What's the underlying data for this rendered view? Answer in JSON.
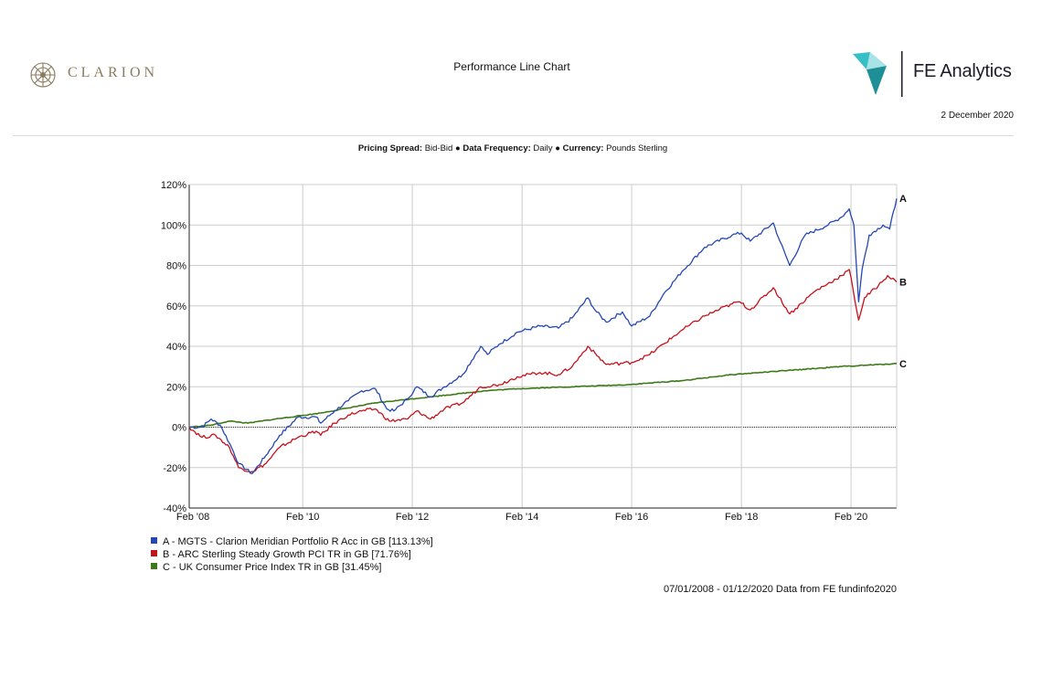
{
  "header": {
    "brand_left": "CLARION",
    "title": "Performance Line Chart",
    "brand_right": "FE Analytics",
    "date": "2 December 2020"
  },
  "subheader": {
    "pricing_spread_label": "Pricing Spread:",
    "pricing_spread_value": "Bid-Bid",
    "data_frequency_label": "Data Frequency:",
    "data_frequency_value": "Daily",
    "currency_label": "Currency:",
    "currency_value": "Pounds Sterling",
    "separator": "●"
  },
  "footer": {
    "source": "07/01/2008 - 01/12/2020 Data from FE fundinfo2020"
  },
  "colors": {
    "A": "#2447b5",
    "B": "#c8101a",
    "C": "#3d7a17",
    "grid": "#cccccc"
  },
  "chart_data": {
    "type": "line",
    "x_start": "2008-01-07",
    "x_end": "2020-12-01",
    "x_ticks": [
      "Feb '08",
      "Feb '10",
      "Feb '12",
      "Feb '14",
      "Feb '16",
      "Feb '18",
      "Feb '20"
    ],
    "y_ticks": [
      "120%",
      "100%",
      "80%",
      "60%",
      "40%",
      "20%",
      "0%",
      "-20%",
      "-40%"
    ],
    "ylim": [
      -40,
      120
    ],
    "grid": true,
    "series": [
      {
        "key": "A",
        "end_label": "A",
        "name": "A - MGTS - Clarion Meridian Portfolio R Acc in GB [113.13%]",
        "points": [
          [
            "2008-01-07",
            0
          ],
          [
            "2008-04-01",
            0
          ],
          [
            "2008-06-01",
            4
          ],
          [
            "2008-08-01",
            1
          ],
          [
            "2008-10-15",
            -10
          ],
          [
            "2008-12-01",
            -18
          ],
          [
            "2009-03-01",
            -23
          ],
          [
            "2009-06-01",
            -14
          ],
          [
            "2009-09-01",
            -4
          ],
          [
            "2010-01-01",
            5
          ],
          [
            "2010-05-01",
            5
          ],
          [
            "2010-06-01",
            2
          ],
          [
            "2010-09-01",
            8
          ],
          [
            "2010-12-01",
            13
          ],
          [
            "2011-03-01",
            18
          ],
          [
            "2011-06-01",
            19
          ],
          [
            "2011-08-15",
            9
          ],
          [
            "2011-10-01",
            8
          ],
          [
            "2012-01-01",
            14
          ],
          [
            "2012-03-01",
            20
          ],
          [
            "2012-06-01",
            15
          ],
          [
            "2012-09-01",
            20
          ],
          [
            "2013-01-01",
            26
          ],
          [
            "2013-05-01",
            40
          ],
          [
            "2013-06-15",
            36
          ],
          [
            "2013-09-01",
            41
          ],
          [
            "2014-01-01",
            47
          ],
          [
            "2014-06-01",
            50
          ],
          [
            "2014-10-01",
            49
          ],
          [
            "2015-01-01",
            54
          ],
          [
            "2015-04-15",
            64
          ],
          [
            "2015-06-01",
            58
          ],
          [
            "2015-08-15",
            52
          ],
          [
            "2015-12-01",
            57
          ],
          [
            "2016-02-01",
            50
          ],
          [
            "2016-06-01",
            55
          ],
          [
            "2016-09-01",
            66
          ],
          [
            "2017-01-01",
            77
          ],
          [
            "2017-06-01",
            89
          ],
          [
            "2017-12-01",
            95
          ],
          [
            "2018-02-01",
            96
          ],
          [
            "2018-04-01",
            92
          ],
          [
            "2018-09-01",
            101
          ],
          [
            "2018-10-15",
            92
          ],
          [
            "2018-12-20",
            80
          ],
          [
            "2019-04-01",
            95
          ],
          [
            "2019-09-01",
            100
          ],
          [
            "2019-12-01",
            104
          ],
          [
            "2020-01-20",
            108
          ],
          [
            "2020-02-20",
            100
          ],
          [
            "2020-03-23",
            62
          ],
          [
            "2020-04-15",
            78
          ],
          [
            "2020-06-01",
            95
          ],
          [
            "2020-09-01",
            100
          ],
          [
            "2020-10-15",
            98
          ],
          [
            "2020-12-01",
            113.13
          ]
        ]
      },
      {
        "key": "B",
        "end_label": "B",
        "name": "B - ARC Sterling Steady Growth PCI TR in GB [71.76%]",
        "points": [
          [
            "2008-01-07",
            0
          ],
          [
            "2008-04-01",
            -5
          ],
          [
            "2008-07-01",
            -4
          ],
          [
            "2008-10-01",
            -10
          ],
          [
            "2008-12-01",
            -20
          ],
          [
            "2009-03-01",
            -22
          ],
          [
            "2009-06-01",
            -18
          ],
          [
            "2009-09-01",
            -10
          ],
          [
            "2010-01-01",
            -5
          ],
          [
            "2010-05-01",
            -2
          ],
          [
            "2010-06-01",
            -4
          ],
          [
            "2010-09-01",
            2
          ],
          [
            "2010-12-01",
            6
          ],
          [
            "2011-03-01",
            8
          ],
          [
            "2011-06-01",
            9
          ],
          [
            "2011-09-01",
            3
          ],
          [
            "2012-01-01",
            4
          ],
          [
            "2012-03-01",
            8
          ],
          [
            "2012-06-01",
            4
          ],
          [
            "2012-09-01",
            9
          ],
          [
            "2013-01-01",
            12
          ],
          [
            "2013-05-01",
            20
          ],
          [
            "2013-09-01",
            21
          ],
          [
            "2014-01-01",
            25
          ],
          [
            "2014-06-01",
            27
          ],
          [
            "2014-10-01",
            26
          ],
          [
            "2015-01-01",
            30
          ],
          [
            "2015-04-15",
            40
          ],
          [
            "2015-08-15",
            31
          ],
          [
            "2016-02-01",
            32
          ],
          [
            "2016-06-01",
            36
          ],
          [
            "2017-01-01",
            48
          ],
          [
            "2017-06-01",
            55
          ],
          [
            "2017-12-01",
            61
          ],
          [
            "2018-01-20",
            62
          ],
          [
            "2018-04-01",
            58
          ],
          [
            "2018-09-01",
            69
          ],
          [
            "2018-12-20",
            56
          ],
          [
            "2019-06-01",
            67
          ],
          [
            "2019-12-01",
            75
          ],
          [
            "2020-01-20",
            78
          ],
          [
            "2020-03-23",
            53
          ],
          [
            "2020-05-01",
            64
          ],
          [
            "2020-08-01",
            70
          ],
          [
            "2020-10-01",
            75
          ],
          [
            "2020-12-01",
            71.76
          ]
        ]
      },
      {
        "key": "C",
        "end_label": "C",
        "name": "C - UK Consumer Price Index TR in GB [31.45%]",
        "points": [
          [
            "2008-01-07",
            0
          ],
          [
            "2008-06-01",
            1
          ],
          [
            "2008-10-01",
            3
          ],
          [
            "2009-02-01",
            2
          ],
          [
            "2009-08-01",
            4
          ],
          [
            "2010-06-01",
            7
          ],
          [
            "2011-06-01",
            12
          ],
          [
            "2012-06-01",
            15
          ],
          [
            "2013-06-01",
            18
          ],
          [
            "2014-01-01",
            19
          ],
          [
            "2015-01-01",
            20
          ],
          [
            "2016-01-01",
            21
          ],
          [
            "2017-01-01",
            23
          ],
          [
            "2017-12-01",
            26
          ],
          [
            "2018-12-01",
            28
          ],
          [
            "2019-12-01",
            30
          ],
          [
            "2020-12-01",
            31.45
          ]
        ]
      }
    ]
  }
}
